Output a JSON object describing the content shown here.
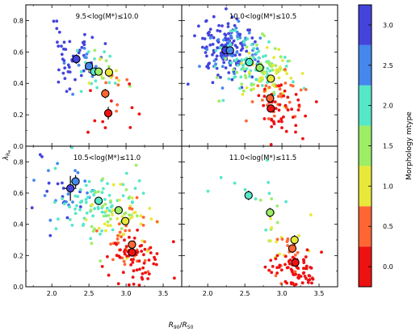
{
  "chart_data": {
    "type": "scatter",
    "xlabel": "R_90/R_50",
    "ylabel": "λ_Re",
    "xlim": [
      1.65,
      3.75
    ],
    "ylim": [
      0.0,
      0.9
    ],
    "x_ticks": [
      "2.0",
      "2.5",
      "3.0",
      "3.5"
    ],
    "y_ticks": [
      "0.0",
      "0.2",
      "0.4",
      "0.6",
      "0.8"
    ],
    "colorbar": {
      "label": "Morphology mtype",
      "ticks": [
        "0.0",
        "0.5",
        "1.0",
        "1.5",
        "2.0",
        "2.5",
        "3.0"
      ],
      "range": [
        -0.25,
        3.25
      ],
      "bins": [
        {
          "from": -0.25,
          "to": 0.25,
          "color": "#ee1111"
        },
        {
          "from": 0.25,
          "to": 0.75,
          "color": "#ff6633"
        },
        {
          "from": 0.75,
          "to": 1.25,
          "color": "#e8e83a"
        },
        {
          "from": 1.25,
          "to": 1.75,
          "color": "#9ded66"
        },
        {
          "from": 1.75,
          "to": 2.25,
          "color": "#55e8c8"
        },
        {
          "from": 2.25,
          "to": 2.75,
          "color": "#4488ee"
        },
        {
          "from": 2.75,
          "to": 3.25,
          "color": "#4444dd"
        }
      ]
    },
    "panels": [
      {
        "title": "9.5<log(M*)≤10.0",
        "seed": 11,
        "scatter_clusters": [
          {
            "mtype": 3.0,
            "n": 45,
            "cx": 2.3,
            "cy": 0.57,
            "sx": 0.18,
            "sy": 0.1
          },
          {
            "mtype": 2.5,
            "n": 10,
            "cx": 2.45,
            "cy": 0.53,
            "sx": 0.12,
            "sy": 0.07
          },
          {
            "mtype": 2.0,
            "n": 14,
            "cx": 2.55,
            "cy": 0.48,
            "sx": 0.15,
            "sy": 0.08
          },
          {
            "mtype": 1.5,
            "n": 8,
            "cx": 2.65,
            "cy": 0.46,
            "sx": 0.15,
            "sy": 0.08
          },
          {
            "mtype": 1.0,
            "n": 7,
            "cx": 2.75,
            "cy": 0.45,
            "sx": 0.12,
            "sy": 0.08
          },
          {
            "mtype": 0.5,
            "n": 7,
            "cx": 2.75,
            "cy": 0.33,
            "sx": 0.12,
            "sy": 0.08
          },
          {
            "mtype": 0.0,
            "n": 10,
            "cx": 2.8,
            "cy": 0.2,
            "sx": 0.2,
            "sy": 0.08
          }
        ],
        "means": [
          {
            "x": 2.33,
            "y": 0.555,
            "xerr": 0.03,
            "yerr": 0.03,
            "mtype": 3.0
          },
          {
            "x": 2.5,
            "y": 0.51,
            "xerr": 0.03,
            "yerr": 0.025,
            "mtype": 2.5
          },
          {
            "x": 2.57,
            "y": 0.475,
            "xerr": 0.03,
            "yerr": 0.02,
            "mtype": 2.0
          },
          {
            "x": 2.63,
            "y": 0.475,
            "xerr": 0.03,
            "yerr": 0.02,
            "mtype": 1.5
          },
          {
            "x": 2.77,
            "y": 0.47,
            "xerr": 0.03,
            "yerr": 0.03,
            "mtype": 1.0
          },
          {
            "x": 2.72,
            "y": 0.335,
            "xerr": 0.03,
            "yerr": 0.03,
            "mtype": 0.5
          },
          {
            "x": 2.76,
            "y": 0.21,
            "xerr": 0.04,
            "yerr": 0.04,
            "mtype": 0.0
          }
        ]
      },
      {
        "title": "10.0<log(M*)≤10.5",
        "seed": 23,
        "scatter_clusters": [
          {
            "mtype": 3.0,
            "n": 130,
            "cx": 2.25,
            "cy": 0.62,
            "sx": 0.2,
            "sy": 0.1
          },
          {
            "mtype": 2.5,
            "n": 40,
            "cx": 2.3,
            "cy": 0.6,
            "sx": 0.18,
            "sy": 0.09
          },
          {
            "mtype": 2.0,
            "n": 70,
            "cx": 2.55,
            "cy": 0.53,
            "sx": 0.22,
            "sy": 0.1
          },
          {
            "mtype": 1.5,
            "n": 45,
            "cx": 2.7,
            "cy": 0.48,
            "sx": 0.2,
            "sy": 0.1
          },
          {
            "mtype": 1.0,
            "n": 35,
            "cx": 2.85,
            "cy": 0.42,
            "sx": 0.18,
            "sy": 0.1
          },
          {
            "mtype": 0.5,
            "n": 30,
            "cx": 2.9,
            "cy": 0.3,
            "sx": 0.16,
            "sy": 0.09
          },
          {
            "mtype": 0.0,
            "n": 45,
            "cx": 2.95,
            "cy": 0.22,
            "sx": 0.18,
            "sy": 0.09
          }
        ],
        "means": [
          {
            "x": 2.24,
            "y": 0.61,
            "xerr": 0.02,
            "yerr": 0.01,
            "mtype": 3.0
          },
          {
            "x": 2.3,
            "y": 0.61,
            "xerr": 0.02,
            "yerr": 0.01,
            "mtype": 2.5
          },
          {
            "x": 2.56,
            "y": 0.535,
            "xerr": 0.02,
            "yerr": 0.01,
            "mtype": 2.0
          },
          {
            "x": 2.7,
            "y": 0.5,
            "xerr": 0.02,
            "yerr": 0.01,
            "mtype": 1.5
          },
          {
            "x": 2.85,
            "y": 0.43,
            "xerr": 0.02,
            "yerr": 0.015,
            "mtype": 1.0
          },
          {
            "x": 2.84,
            "y": 0.305,
            "xerr": 0.02,
            "yerr": 0.015,
            "mtype": 0.5
          },
          {
            "x": 2.85,
            "y": 0.24,
            "xerr": 0.02,
            "yerr": 0.015,
            "mtype": 0.0
          }
        ]
      },
      {
        "title": "10.5<log(M*)≤11.0",
        "seed": 37,
        "scatter_clusters": [
          {
            "mtype": 3.0,
            "n": 15,
            "cx": 2.15,
            "cy": 0.63,
            "sx": 0.2,
            "sy": 0.12
          },
          {
            "mtype": 2.5,
            "n": 20,
            "cx": 2.3,
            "cy": 0.62,
            "sx": 0.2,
            "sy": 0.1
          },
          {
            "mtype": 2.0,
            "n": 70,
            "cx": 2.6,
            "cy": 0.55,
            "sx": 0.28,
            "sy": 0.11
          },
          {
            "mtype": 1.5,
            "n": 30,
            "cx": 2.8,
            "cy": 0.47,
            "sx": 0.22,
            "sy": 0.11
          },
          {
            "mtype": 1.0,
            "n": 35,
            "cx": 3.0,
            "cy": 0.42,
            "sx": 0.2,
            "sy": 0.1
          },
          {
            "mtype": 0.5,
            "n": 35,
            "cx": 3.05,
            "cy": 0.28,
            "sx": 0.18,
            "sy": 0.1
          },
          {
            "mtype": 0.0,
            "n": 65,
            "cx": 3.1,
            "cy": 0.2,
            "sx": 0.18,
            "sy": 0.09
          }
        ],
        "means": [
          {
            "x": 2.25,
            "y": 0.63,
            "xerr": 0.08,
            "yerr": 0.08,
            "mtype": 3.0
          },
          {
            "x": 2.32,
            "y": 0.675,
            "xerr": 0.04,
            "yerr": 0.04,
            "mtype": 2.5
          },
          {
            "x": 2.63,
            "y": 0.55,
            "xerr": 0.02,
            "yerr": 0.015,
            "mtype": 2.0
          },
          {
            "x": 2.9,
            "y": 0.49,
            "xerr": 0.02,
            "yerr": 0.015,
            "mtype": 1.5
          },
          {
            "x": 2.99,
            "y": 0.42,
            "xerr": 0.02,
            "yerr": 0.015,
            "mtype": 1.0
          },
          {
            "x": 3.08,
            "y": 0.27,
            "xerr": 0.02,
            "yerr": 0.015,
            "mtype": 0.5
          },
          {
            "x": 3.08,
            "y": 0.22,
            "xerr": 0.02,
            "yerr": 0.015,
            "mtype": 0.0
          }
        ]
      },
      {
        "title": "11.0<log(M*)≤11.5",
        "seed": 53,
        "scatter_clusters": [
          {
            "mtype": 2.0,
            "n": 10,
            "cx": 2.55,
            "cy": 0.58,
            "sx": 0.25,
            "sy": 0.1
          },
          {
            "mtype": 1.5,
            "n": 8,
            "cx": 2.8,
            "cy": 0.45,
            "sx": 0.15,
            "sy": 0.09
          },
          {
            "mtype": 1.0,
            "n": 12,
            "cx": 3.05,
            "cy": 0.3,
            "sx": 0.15,
            "sy": 0.09
          },
          {
            "mtype": 0.5,
            "n": 15,
            "cx": 3.1,
            "cy": 0.2,
            "sx": 0.12,
            "sy": 0.07
          },
          {
            "mtype": 0.0,
            "n": 75,
            "cx": 3.18,
            "cy": 0.1,
            "sx": 0.15,
            "sy": 0.06
          }
        ],
        "means": [
          {
            "x": 2.55,
            "y": 0.585,
            "xerr": 0.04,
            "yerr": 0.03,
            "mtype": 2.0
          },
          {
            "x": 2.84,
            "y": 0.475,
            "xerr": 0.03,
            "yerr": 0.03,
            "mtype": 1.5
          },
          {
            "x": 3.17,
            "y": 0.3,
            "xerr": 0.02,
            "yerr": 0.03,
            "mtype": 1.0
          },
          {
            "x": 3.14,
            "y": 0.245,
            "xerr": 0.02,
            "yerr": 0.02,
            "mtype": 0.5
          },
          {
            "x": 3.18,
            "y": 0.155,
            "xerr": 0.02,
            "yerr": 0.02,
            "mtype": 0.0
          }
        ]
      }
    ]
  }
}
